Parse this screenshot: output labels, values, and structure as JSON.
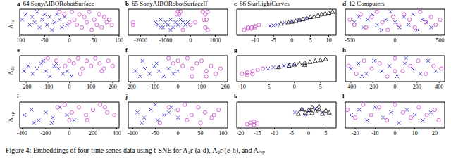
{
  "caption": "Figure 4: Embeddings of four time series data using t-SNE for A₁ε (a-d), A₂ε (e-h), and Aₗₛₚ",
  "chart_data": [
    {
      "type": "scatter",
      "label": "a",
      "title": "64 SonyAIBORobotSurface",
      "ylabel": {
        "main": "A",
        "sub": "1ε"
      },
      "xlim": [
        -100,
        100
      ],
      "xticks": [
        -100,
        -50,
        0,
        50,
        100
      ],
      "ylim": [
        0,
        10
      ],
      "tick_labels": "x",
      "series": [
        {
          "color": "#3333cc",
          "marker": "x",
          "x": [
            -95,
            -88,
            -80,
            -75,
            -70,
            -65,
            -60,
            -55,
            -50,
            -45,
            -40,
            -35,
            -30,
            -25,
            -20,
            -15,
            -10,
            -5
          ],
          "values": [
            6,
            8,
            4,
            7,
            5,
            9,
            3,
            6,
            8,
            4,
            7,
            2,
            5,
            8,
            6,
            3,
            7,
            4
          ]
        },
        {
          "color": "#c040c0",
          "marker": "circle",
          "x": [
            -20,
            -10,
            0,
            5,
            10,
            15,
            20,
            25,
            30,
            35,
            40,
            45,
            50,
            55,
            60,
            65,
            70,
            75,
            80,
            85
          ],
          "values": [
            9,
            8,
            5,
            9,
            6,
            4,
            8,
            3,
            7,
            5,
            9,
            2,
            6,
            4,
            8,
            3,
            7,
            5,
            6,
            4
          ]
        }
      ]
    },
    {
      "type": "scatter",
      "label": "b",
      "title": "65 SonyAIBORobotSurfaceII",
      "xlim": [
        -2500,
        1500
      ],
      "xticks": [
        -2000,
        -1000,
        0,
        1000
      ],
      "ylim": [
        0,
        10
      ],
      "tick_labels": "x",
      "series": [
        {
          "color": "#3333cc",
          "marker": "x",
          "x": [
            -1400,
            -1300,
            -1200,
            -1100,
            -1000,
            -900,
            -800,
            -700,
            -600,
            -500,
            -400,
            -300,
            -200,
            -100,
            -1200,
            -800
          ],
          "values": [
            5,
            4,
            6,
            3,
            5,
            4,
            6,
            3,
            5,
            4,
            6,
            5,
            4,
            5,
            3,
            2
          ]
        },
        {
          "color": "#c040c0",
          "marker": "circle",
          "x": [
            -2300,
            -2300,
            -500,
            -450,
            -400,
            -550,
            500,
            600,
            700,
            650,
            550,
            600,
            700,
            -300,
            0,
            200
          ],
          "values": [
            5,
            4,
            9,
            8,
            9,
            8,
            9,
            8,
            9,
            6,
            6,
            3,
            2,
            2,
            4,
            5
          ]
        }
      ]
    },
    {
      "type": "scatter",
      "label": "c",
      "title": "66 StarLightCurves",
      "xlim": [
        -15,
        12
      ],
      "xticks": [
        -10,
        -5,
        0,
        5,
        10
      ],
      "ylim": [
        0,
        10
      ],
      "tick_labels": "x",
      "series": [
        {
          "color": "#c040c0",
          "marker": "circle",
          "x": [
            -13,
            -12,
            -11,
            -10,
            -9,
            -12,
            -11,
            -10
          ],
          "values": [
            2,
            2.5,
            3,
            3.5,
            4,
            3,
            2.5,
            3
          ]
        },
        {
          "color": "#000000",
          "marker": "triangle",
          "x": [
            -3,
            -1,
            0,
            1,
            2,
            3,
            4,
            5,
            6,
            7,
            8,
            9,
            10,
            11
          ],
          "values": [
            4.5,
            5,
            5.2,
            5.5,
            6,
            6.2,
            6.5,
            7,
            7.2,
            7.5,
            8,
            8.2,
            8.6,
            9
          ]
        },
        {
          "color": "#3333cc",
          "marker": "x",
          "x": [
            -6,
            -5,
            -4,
            -2,
            0,
            2,
            4
          ],
          "values": [
            3.5,
            3.8,
            4,
            4.8,
            5.3,
            5.8,
            6.3
          ]
        }
      ]
    },
    {
      "type": "scatter",
      "label": "d",
      "title": "12 Computers",
      "xlim": [
        -550,
        550
      ],
      "xticks": [
        -500,
        0,
        500
      ],
      "ylim": [
        0,
        10
      ],
      "tick_labels": "x",
      "series": [
        {
          "color": "#3333cc",
          "marker": "x",
          "x": [
            -450,
            -400,
            -350,
            -300,
            -250,
            -200,
            -150,
            -100,
            -50,
            0,
            50,
            100,
            150,
            200,
            250,
            300,
            350,
            400
          ],
          "values": [
            5,
            7,
            3,
            6,
            8,
            4,
            2,
            6,
            9,
            5,
            3,
            7,
            4,
            8,
            2,
            6,
            5,
            3
          ]
        },
        {
          "color": "#c040c0",
          "marker": "circle",
          "x": [
            -500,
            -450,
            -380,
            -320,
            -260,
            -200,
            -140,
            -80,
            -20,
            40,
            100,
            160,
            220,
            280,
            340,
            400,
            450,
            500
          ],
          "values": [
            6,
            4,
            8,
            3,
            7,
            9,
            5,
            2,
            7,
            4,
            8,
            6,
            3,
            9,
            5,
            7,
            4,
            6
          ]
        }
      ]
    },
    {
      "type": "scatter",
      "label": "e",
      "ylabel": {
        "main": "A",
        "sub": "2ε"
      },
      "xlim": [
        -230,
        230
      ],
      "xticks": [
        -200,
        -100,
        0,
        100,
        200
      ],
      "ylim": [
        0,
        10
      ],
      "tick_labels": "x",
      "series": [
        {
          "color": "#3333cc",
          "marker": "x",
          "x": [
            -210,
            -190,
            -170,
            -150,
            -130,
            -110,
            -90,
            -70,
            -50,
            -30,
            -10,
            10,
            -120,
            -60
          ],
          "values": [
            4,
            6,
            3,
            5,
            7,
            4,
            2,
            6,
            5,
            3,
            4,
            2,
            8,
            7
          ]
        },
        {
          "color": "#c040c0",
          "marker": "circle",
          "x": [
            -100,
            -60,
            -20,
            0,
            20,
            40,
            60,
            80,
            100,
            120,
            140,
            160,
            180,
            200,
            50,
            150
          ],
          "values": [
            9,
            8,
            6,
            8,
            7,
            9,
            5,
            8,
            6,
            9,
            7,
            5,
            8,
            6,
            3,
            4
          ]
        }
      ]
    },
    {
      "type": "scatter",
      "label": "f",
      "xlim": [
        -210,
        210
      ],
      "xticks": [
        -200,
        -100,
        0,
        100,
        200
      ],
      "ylim": [
        0,
        10
      ],
      "tick_labels": "x",
      "series": [
        {
          "color": "#3333cc",
          "marker": "x",
          "x": [
            -180,
            -160,
            -140,
            -120,
            -100,
            -80,
            -60,
            -40,
            -20,
            0,
            -150,
            -90
          ],
          "values": [
            4,
            2,
            5,
            3,
            6,
            4,
            2,
            5,
            3,
            4,
            8,
            7
          ]
        },
        {
          "color": "#c040c0",
          "marker": "circle",
          "x": [
            -40,
            -20,
            0,
            20,
            40,
            60,
            80,
            100,
            120,
            140,
            160,
            180,
            60,
            120
          ],
          "values": [
            9,
            7,
            8,
            6,
            9,
            5,
            7,
            8,
            4,
            6,
            3,
            5,
            2,
            2
          ]
        }
      ]
    },
    {
      "type": "scatter",
      "label": "g",
      "xlim": [
        -11,
        8
      ],
      "xticks": [
        -10,
        -5,
        0,
        5
      ],
      "ylim": [
        0,
        10
      ],
      "tick_labels": "x",
      "series": [
        {
          "color": "#c040c0",
          "marker": "circle",
          "x": [
            -10,
            -9,
            -8,
            -7,
            -6,
            -9,
            -8
          ],
          "values": [
            3,
            3.5,
            4,
            4.5,
            5,
            2.5,
            3
          ]
        },
        {
          "color": "#3333cc",
          "marker": "x",
          "x": [
            -5,
            -4,
            -3,
            -2,
            -1,
            0
          ],
          "values": [
            5,
            5.5,
            5.8,
            6,
            6.3,
            6.5
          ]
        },
        {
          "color": "#000000",
          "marker": "triangle",
          "x": [
            -1,
            0,
            1,
            2,
            3,
            4,
            5,
            6,
            -3,
            2
          ],
          "values": [
            6.2,
            6.6,
            7,
            7.3,
            7.6,
            8,
            8.3,
            8.7,
            5.6,
            6.5
          ]
        }
      ]
    },
    {
      "type": "scatter",
      "label": "h",
      "xlim": [
        -450,
        450
      ],
      "xticks": [
        -400,
        -200,
        0,
        200,
        400
      ],
      "ylim": [
        0,
        10
      ],
      "tick_labels": "x",
      "series": [
        {
          "color": "#3333cc",
          "marker": "x",
          "x": [
            -400,
            -330,
            -260,
            -190,
            -120,
            -50,
            20,
            90,
            160,
            230,
            300,
            370,
            -300,
            100
          ],
          "values": [
            5,
            7,
            3,
            8,
            4,
            6,
            2,
            7,
            5,
            3,
            8,
            4,
            2,
            9
          ]
        },
        {
          "color": "#c040c0",
          "marker": "circle",
          "x": [
            -420,
            -350,
            -280,
            -210,
            -140,
            -70,
            0,
            70,
            140,
            210,
            280,
            350,
            420,
            0
          ],
          "values": [
            6,
            3,
            8,
            5,
            7,
            2,
            9,
            4,
            6,
            8,
            3,
            6,
            5,
            4
          ]
        }
      ]
    },
    {
      "type": "scatter",
      "label": "i",
      "ylabel": {
        "main": "A",
        "sub": "lsp"
      },
      "xlim": [
        -420,
        420
      ],
      "xticks": [
        -400,
        -200,
        0,
        200,
        400
      ],
      "ylim": [
        0,
        10
      ],
      "tick_labels": "x",
      "series": [
        {
          "color": "#3333cc",
          "marker": "x",
          "x": [
            -380,
            -320,
            -260,
            -200,
            -140,
            -80,
            -20,
            40,
            -300,
            -150
          ],
          "values": [
            5,
            7,
            3,
            6,
            4,
            8,
            5,
            3,
            2,
            2
          ]
        },
        {
          "color": "#c040c0",
          "marker": "circle",
          "x": [
            -100,
            -40,
            20,
            80,
            140,
            200,
            260,
            320,
            380,
            0,
            150,
            300
          ],
          "values": [
            8,
            9,
            6,
            8,
            5,
            7,
            9,
            6,
            5,
            3,
            3,
            8
          ]
        }
      ]
    },
    {
      "type": "scatter",
      "label": "j",
      "xlim": [
        -110,
        110
      ],
      "xticks": [
        -100,
        -50,
        0,
        50,
        100
      ],
      "ylim": [
        0,
        10
      ],
      "tick_labels": "x",
      "series": [
        {
          "color": "#3333cc",
          "marker": "x",
          "x": [
            -90,
            -75,
            -60,
            -45,
            -30,
            -15,
            0,
            -80,
            -50,
            -20
          ],
          "values": [
            6,
            4,
            7,
            3,
            5,
            8,
            4,
            2,
            9,
            6
          ]
        },
        {
          "color": "#c040c0",
          "marker": "circle",
          "x": [
            -40,
            -20,
            0,
            15,
            30,
            45,
            60,
            75,
            90,
            20,
            50,
            80
          ],
          "values": [
            2,
            8,
            7,
            9,
            5,
            8,
            6,
            4,
            7,
            3,
            2,
            5
          ]
        }
      ]
    },
    {
      "type": "scatter",
      "label": "k",
      "xlim": [
        -21,
        8
      ],
      "xticks": [
        -20,
        -15,
        -10,
        -5,
        0,
        5
      ],
      "ylim": [
        0,
        10
      ],
      "tick_labels": "x",
      "series": [
        {
          "color": "#c040c0",
          "marker": "circle",
          "x": [
            -18,
            -17,
            -16,
            -15,
            -16,
            -17
          ],
          "values": [
            1.5,
            2,
            2.5,
            1.8,
            1.2,
            1
          ]
        },
        {
          "color": "#3333cc",
          "marker": "x",
          "x": [
            -4,
            -2,
            0,
            2,
            4,
            -1
          ],
          "values": [
            6,
            7,
            6.5,
            7.5,
            6,
            5
          ]
        },
        {
          "color": "#000000",
          "marker": "triangle",
          "x": [
            -3,
            -1,
            0,
            1,
            2,
            3,
            4,
            5,
            6,
            -2,
            1,
            3
          ],
          "values": [
            5.5,
            6,
            7,
            5.8,
            6.5,
            7.2,
            5.5,
            6.8,
            6,
            7.3,
            8,
            8.4
          ]
        }
      ]
    },
    {
      "type": "scatter",
      "label": "l",
      "xlim": [
        -25,
        25
      ],
      "xticks": [
        -20,
        -10,
        0,
        10,
        20
      ],
      "ylim": [
        0,
        10
      ],
      "tick_labels": "x",
      "series": [
        {
          "color": "#3333cc",
          "marker": "x",
          "x": [
            -22,
            -18,
            -14,
            -10,
            -6,
            -2,
            2,
            6,
            10,
            14,
            18
          ],
          "values": [
            5,
            7,
            3,
            8,
            4,
            6,
            2,
            7,
            5,
            3,
            6
          ]
        },
        {
          "color": "#c040c0",
          "marker": "circle",
          "x": [
            -24,
            -20,
            -16,
            -12,
            -8,
            -4,
            0,
            4,
            8,
            12,
            16,
            20,
            22
          ],
          "values": [
            7,
            4,
            9,
            5,
            8,
            3,
            9,
            6,
            4,
            8,
            5,
            7,
            3
          ]
        }
      ]
    }
  ]
}
